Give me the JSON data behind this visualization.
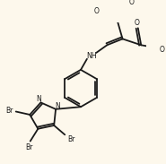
{
  "background_color": "#fdf8ec",
  "line_color": "#1a1a1a",
  "line_width": 1.3,
  "figsize": [
    1.85,
    1.83
  ],
  "dpi": 100,
  "xlim": [
    0,
    185
  ],
  "ylim": [
    0,
    183
  ]
}
